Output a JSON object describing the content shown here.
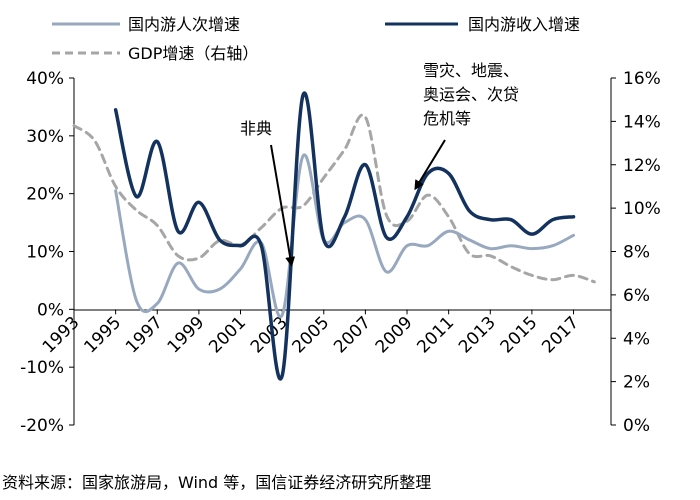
{
  "chart_data": {
    "type": "line",
    "grid": false,
    "legend_position": "top",
    "x": [
      1993,
      1994,
      1995,
      1996,
      1997,
      1998,
      1999,
      2000,
      2001,
      2002,
      2003,
      2004,
      2005,
      2006,
      2007,
      2008,
      2009,
      2010,
      2011,
      2012,
      2013,
      2014,
      2015,
      2016,
      2017
    ],
    "x_tick_labels": [
      "1993",
      "1995",
      "1997",
      "1999",
      "2001",
      "2003",
      "2005",
      "2007",
      "2009",
      "2011",
      "2013",
      "2015",
      "2017"
    ],
    "y_left": {
      "ticks": [
        "40%",
        "30%",
        "20%",
        "10%",
        "0%",
        "-10%",
        "-20%"
      ],
      "range": [
        -20,
        40
      ],
      "unit": "%"
    },
    "y_right": {
      "ticks": [
        "16%",
        "14%",
        "12%",
        "10%",
        "8%",
        "6%",
        "4%",
        "2%",
        "0%"
      ],
      "range": [
        0,
        16
      ],
      "unit": "%"
    },
    "series": [
      {
        "name": "国内游人次增速",
        "axis": "left",
        "color": "#98a9bf",
        "style": "solid",
        "x": [
          1995,
          1996,
          1997,
          1998,
          1999,
          2000,
          2001,
          2002,
          2003,
          2004,
          2005,
          2006,
          2007,
          2008,
          2009,
          2010,
          2011,
          2012,
          2013,
          2014,
          2015,
          2016,
          2017
        ],
        "values": [
          20.5,
          1.5,
          1.0,
          8.0,
          3.5,
          3.5,
          7.0,
          11.5,
          -1.0,
          26.5,
          12.0,
          15.0,
          15.5,
          6.5,
          11.0,
          11.0,
          13.5,
          12.0,
          10.5,
          11.0,
          10.5,
          11.0,
          12.8
        ]
      },
      {
        "name": "国内游收入增速",
        "axis": "left",
        "color": "#14325e",
        "style": "solid",
        "x": [
          1995,
          1996,
          1997,
          1998,
          1999,
          2000,
          2001,
          2002,
          2003,
          2004,
          2005,
          2006,
          2007,
          2008,
          2009,
          2010,
          2011,
          2012,
          2013,
          2014,
          2015,
          2016,
          2017
        ],
        "values": [
          34.5,
          19.5,
          29.0,
          13.5,
          18.5,
          12.0,
          11.0,
          11.0,
          -11.5,
          37.0,
          12.0,
          16.0,
          25.0,
          12.5,
          16.0,
          23.5,
          23.5,
          17.0,
          15.5,
          15.5,
          13.0,
          15.5,
          16.0
        ]
      },
      {
        "name": "GDP增速（右轴）",
        "axis": "right",
        "color": "#a6a6a6",
        "style": "dashed",
        "x": [
          1993,
          1994,
          1995,
          1996,
          1997,
          1998,
          1999,
          2000,
          2001,
          2002,
          2003,
          2004,
          2005,
          2006,
          2007,
          2008,
          2009,
          2010,
          2011,
          2012,
          2013,
          2014,
          2015,
          2016,
          2017,
          2018
        ],
        "values": [
          13.8,
          13.1,
          11.0,
          9.9,
          9.2,
          7.8,
          7.7,
          8.5,
          8.3,
          9.1,
          10.0,
          10.1,
          11.4,
          12.7,
          14.2,
          9.7,
          9.4,
          10.6,
          9.6,
          7.9,
          7.8,
          7.3,
          6.9,
          6.7,
          6.9,
          6.6
        ]
      }
    ],
    "annotations": [
      {
        "text": "非典"
      },
      {
        "text": [
          "雪灾、地震、",
          "奥运会、次贷",
          "危机等"
        ]
      }
    ]
  },
  "source": "资料来源：国家旅游局，Wind 等，国信证券经济研究所整理"
}
